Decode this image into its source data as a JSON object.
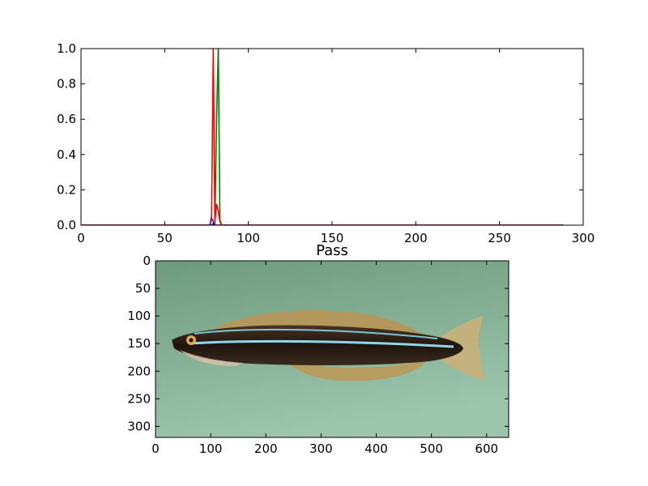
{
  "chart_data": [
    {
      "type": "line",
      "title": "",
      "xlabel": "",
      "ylabel": "",
      "xlim": [
        0,
        300
      ],
      "ylim": [
        0,
        1.0
      ],
      "x_ticks": [
        0,
        50,
        100,
        150,
        200,
        250,
        300
      ],
      "y_ticks": [
        0.0,
        0.2,
        0.4,
        0.6,
        0.8,
        1.0
      ],
      "x_tick_labels": [
        "0",
        "50",
        "100",
        "150",
        "200",
        "250",
        "300"
      ],
      "y_tick_labels": [
        "0.0",
        "0.2",
        "0.4",
        "0.6",
        "0.8",
        "1.0"
      ],
      "grid": false,
      "series": [
        {
          "color": "#0000ff",
          "x": [
            0,
            77,
            78,
            79,
            80,
            81,
            82,
            84,
            288
          ],
          "y": [
            0,
            0,
            0,
            0.01,
            0.0,
            0.0,
            0.0,
            0,
            0
          ]
        },
        {
          "color": "#008000",
          "x": [
            0,
            80,
            81,
            82,
            83,
            84,
            288
          ],
          "y": [
            0,
            0,
            0.6,
            1.0,
            0.03,
            0,
            0
          ]
        },
        {
          "color": "#ff0000",
          "x": [
            0,
            77,
            78,
            79,
            80,
            81,
            82,
            83,
            84,
            288
          ],
          "y": [
            0,
            0,
            0.05,
            1.0,
            0.02,
            0.12,
            0.08,
            0.02,
            0,
            0
          ]
        },
        {
          "color": "#800080",
          "x": [
            0,
            77,
            78,
            79,
            80,
            288
          ],
          "y": [
            0,
            0,
            0.04,
            0.02,
            0,
            0
          ]
        }
      ]
    },
    {
      "type": "image",
      "title": "Pass",
      "xlim": [
        0,
        640
      ],
      "ylim": [
        320,
        0
      ],
      "x_ticks": [
        0,
        100,
        200,
        300,
        400,
        500,
        600
      ],
      "y_ticks": [
        0,
        50,
        100,
        150,
        200,
        250,
        300
      ],
      "x_tick_labels": [
        "0",
        "100",
        "200",
        "300",
        "400",
        "500",
        "600"
      ],
      "y_tick_labels": [
        "0",
        "50",
        "100",
        "150",
        "200",
        "250",
        "300"
      ],
      "content": "photo of a striped blenny fish on a green background",
      "colors": {
        "background_top": "#6e9a7c",
        "background_bottom": "#9cc5ae",
        "body": "#2a1c12",
        "stripe": "#8fd6e8",
        "fin": "#b89a5c"
      }
    }
  ]
}
